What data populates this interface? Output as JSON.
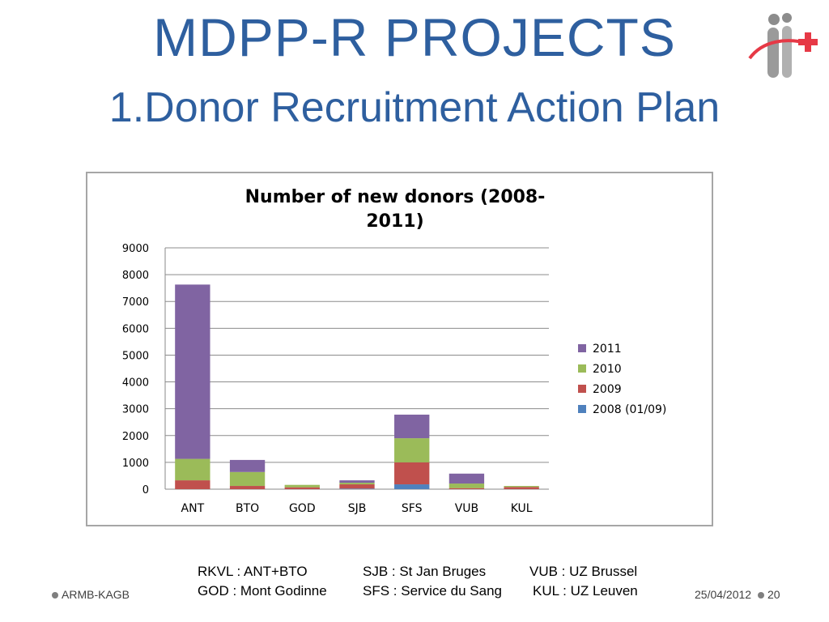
{
  "slide": {
    "title": "MDPP-R PROJECTS",
    "subtitle": "1.Donor Recruitment Action Plan"
  },
  "glossary": [
    [
      "RKVL : ANT+BTO",
      "SJB : St Jan Bruges",
      "VUB : UZ Brussel"
    ],
    [
      "GOD : Mont Godinne",
      "SFS : Service du Sang",
      "KUL : UZ Leuven"
    ]
  ],
  "footer": {
    "org": "ARMB-KAGB",
    "date": "25/04/2012",
    "page": "20"
  },
  "colors": {
    "title": "#2e5f9f",
    "logo_red": "#e63946",
    "logo_gray": "#8c8c8c"
  },
  "chart_data": {
    "type": "bar",
    "stacked": true,
    "title": "Number of new donors (2008-2011)",
    "categories": [
      "ANT",
      "BTO",
      "GOD",
      "SJB",
      "SFS",
      "VUB",
      "KUL"
    ],
    "series": [
      {
        "name": "2008 (01/09)",
        "color": "#4f81bd",
        "values": [
          0,
          0,
          0,
          20,
          180,
          0,
          0
        ]
      },
      {
        "name": "2009",
        "color": "#c0504d",
        "values": [
          330,
          120,
          70,
          160,
          820,
          40,
          80
        ]
      },
      {
        "name": "2010",
        "color": "#9bbb59",
        "values": [
          800,
          520,
          90,
          60,
          900,
          170,
          40
        ]
      },
      {
        "name": "2011",
        "color": "#8064a2",
        "values": [
          6500,
          450,
          0,
          90,
          880,
          370,
          0
        ]
      }
    ],
    "ylim": [
      0,
      9000
    ],
    "yticks": [
      "0",
      "1000",
      "2000",
      "3000",
      "4000",
      "5000",
      "6000",
      "7000",
      "8000",
      "9000"
    ],
    "grid": true,
    "legend_position": "right"
  }
}
